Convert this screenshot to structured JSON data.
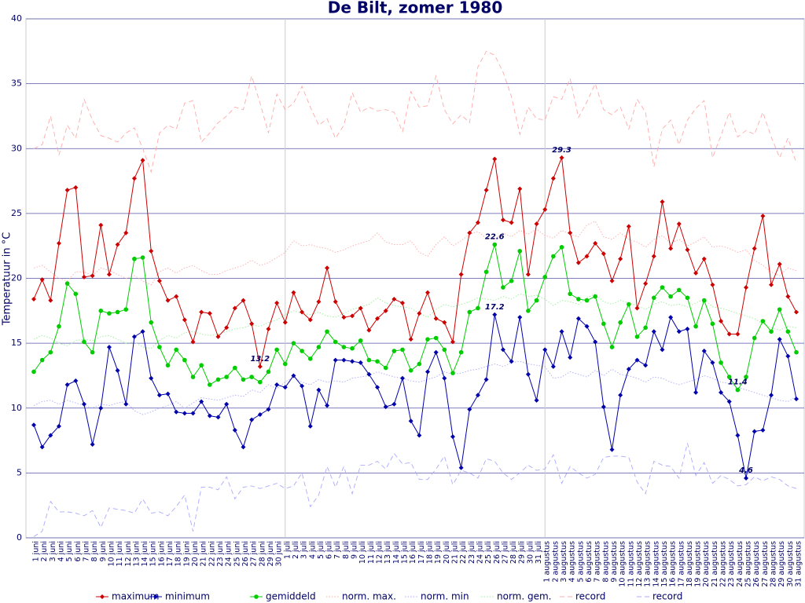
{
  "chart_data": {
    "type": "line",
    "title": "De Bilt, zomer 1980",
    "y_label": "Temperatuur in °C",
    "categories": [
      "1 juni",
      "2 juni",
      "3 juni",
      "4 juni",
      "5 juni",
      "6 juni",
      "7 juni",
      "8 juni",
      "9 juni",
      "10 juni",
      "11 juni",
      "12 juni",
      "13 juni",
      "14 juni",
      "15 juni",
      "16 juni",
      "17 juni",
      "18 juni",
      "19 juni",
      "20 juni",
      "21 juni",
      "22 juni",
      "23 juni",
      "24 juni",
      "25 juni",
      "26 juni",
      "27 juni",
      "28 juni",
      "29 juni",
      "30 juni",
      "1 juli",
      "2 juli",
      "3 juli",
      "4 juli",
      "5 juli",
      "6 juli",
      "7 juli",
      "8 juli",
      "9 juli",
      "10 juli",
      "11 juli",
      "12 juli",
      "13 juli",
      "14 juli",
      "15 juli",
      "16 juli",
      "17 juli",
      "18 juli",
      "19 juli",
      "20 juli",
      "21 juli",
      "22 juli",
      "23 juli",
      "24 juli",
      "25 juli",
      "26 juli",
      "27 juli",
      "28 juli",
      "29 juli",
      "30 juli",
      "31 juli",
      "1 augustus",
      "2 augustus",
      "3 augustus",
      "4 augustus",
      "5 augustus",
      "6 augustus",
      "7 augustus",
      "8 augustus",
      "9 augustus",
      "10 augustus",
      "11 augustus",
      "12 augustus",
      "13 augustus",
      "14 augustus",
      "15 augustus",
      "16 augustus",
      "17 augustus",
      "18 augustus",
      "19 augustus",
      "20 augustus",
      "21 augustus",
      "22 augustus",
      "23 augustus",
      "24 augustus",
      "25 augustus",
      "26 augustus",
      "27 augustus",
      "28 augustus",
      "29 augustus",
      "30 augustus",
      "31 augustus"
    ],
    "ylim": [
      0,
      40
    ],
    "yticks": [
      0,
      5,
      10,
      15,
      20,
      25,
      30,
      35,
      40
    ],
    "grid": true,
    "legend": "bottom",
    "series": [
      {
        "name": "maximum",
        "color": "#cc0000",
        "style": "solid",
        "marker": "diamond",
        "values": [
          18.4,
          19.9,
          18.3,
          22.7,
          26.8,
          27.0,
          20.1,
          20.2,
          24.1,
          20.3,
          22.6,
          23.5,
          27.7,
          29.1,
          22.1,
          19.8,
          18.3,
          18.6,
          16.8,
          15.1,
          17.4,
          17.3,
          15.5,
          16.2,
          17.7,
          18.3,
          16.5,
          13.2,
          16.1,
          18.1,
          16.6,
          18.9,
          17.4,
          16.8,
          18.2,
          20.8,
          18.2,
          17.0,
          17.1,
          17.7,
          16.0,
          16.9,
          17.5,
          18.4,
          18.1,
          15.3,
          17.3,
          18.9,
          16.9,
          16.6,
          15.1,
          20.3,
          23.5,
          24.3,
          26.8,
          29.2,
          24.5,
          24.3,
          26.9,
          20.3,
          24.2,
          25.3,
          27.7,
          29.3,
          23.5,
          21.2,
          21.7,
          22.7,
          21.9,
          19.8,
          21.5,
          24.0,
          17.7,
          19.6,
          21.7,
          25.9,
          22.3,
          24.2,
          22.2,
          20.4,
          21.5,
          19.5,
          16.7,
          15.7,
          15.7,
          19.3,
          22.3,
          24.8,
          19.5,
          21.1,
          18.6,
          17.4
        ]
      },
      {
        "name": "minimum",
        "color": "#0000aa",
        "style": "solid",
        "marker": "diamond",
        "values": [
          8.7,
          7.0,
          7.9,
          8.6,
          11.8,
          12.1,
          10.3,
          7.2,
          10.0,
          14.7,
          12.9,
          10.3,
          15.5,
          15.9,
          12.3,
          11.0,
          11.1,
          9.7,
          9.6,
          9.6,
          10.5,
          9.4,
          9.3,
          10.3,
          8.3,
          7.0,
          9.1,
          9.5,
          9.9,
          11.8,
          11.6,
          12.5,
          11.7,
          8.6,
          11.4,
          10.2,
          13.7,
          13.7,
          13.6,
          13.5,
          12.6,
          11.6,
          10.1,
          10.3,
          12.3,
          9.0,
          7.9,
          12.8,
          14.3,
          12.3,
          7.8,
          5.4,
          9.9,
          11.0,
          12.2,
          17.2,
          14.5,
          13.6,
          17.0,
          12.6,
          10.6,
          14.5,
          13.2,
          15.9,
          13.9,
          16.9,
          16.3,
          15.1,
          10.1,
          6.8,
          11.0,
          13.0,
          13.7,
          13.3,
          15.9,
          14.5,
          17.0,
          15.9,
          16.1,
          11.2,
          14.4,
          13.5,
          11.2,
          10.5,
          7.9,
          4.6,
          8.2,
          8.3,
          11.0,
          15.3,
          14.0,
          10.7
        ]
      },
      {
        "name": "gemiddeld",
        "color": "#00cc00",
        "style": "solid",
        "marker": "circle",
        "values": [
          12.8,
          13.7,
          14.3,
          16.3,
          19.6,
          18.8,
          15.1,
          14.3,
          17.5,
          17.3,
          17.4,
          17.6,
          21.5,
          21.6,
          16.6,
          14.7,
          13.3,
          14.5,
          13.7,
          12.4,
          13.3,
          11.8,
          12.2,
          12.4,
          13.1,
          12.2,
          12.4,
          12.0,
          12.8,
          14.5,
          13.4,
          15.0,
          14.4,
          13.8,
          14.7,
          15.9,
          15.1,
          14.7,
          14.6,
          15.2,
          13.7,
          13.6,
          13.1,
          14.4,
          14.5,
          12.9,
          13.4,
          15.3,
          15.4,
          14.5,
          12.7,
          14.3,
          17.4,
          17.7,
          20.5,
          22.6,
          19.3,
          19.8,
          22.1,
          17.5,
          18.3,
          20.1,
          21.7,
          22.4,
          18.8,
          18.4,
          18.3,
          18.6,
          16.5,
          14.7,
          16.6,
          18.0,
          15.5,
          16.2,
          18.5,
          19.3,
          18.6,
          19.1,
          18.5,
          16.3,
          18.3,
          16.5,
          13.5,
          12.4,
          11.4,
          12.4,
          15.4,
          16.7,
          15.9,
          17.6,
          15.9,
          14.3
        ]
      },
      {
        "name": "norm. max.",
        "color": "#ffaaaa",
        "style": "dotted",
        "values": [
          20.8,
          21.0,
          20.5,
          20.0,
          19.8,
          20.5,
          20.5,
          20.2,
          20.8,
          20.6,
          20.3,
          20.0,
          20.2,
          19.8,
          19.5,
          20.5,
          20.8,
          20.4,
          20.8,
          21.0,
          20.6,
          20.3,
          20.3,
          20.6,
          20.8,
          21.0,
          21.4,
          21.0,
          21.2,
          21.6,
          22.0,
          22.9,
          22.5,
          22.6,
          22.4,
          22.3,
          22.0,
          22.2,
          22.5,
          22.7,
          22.9,
          23.5,
          22.8,
          22.6,
          22.6,
          22.9,
          22.0,
          21.7,
          22.6,
          23.2,
          22.5,
          22.9,
          23.4,
          23.6,
          23.1,
          23.0,
          23.5,
          23.2,
          23.7,
          23.4,
          23.8,
          23.3,
          23.1,
          23.7,
          23.4,
          23.2,
          24.1,
          24.4,
          23.2,
          23.0,
          23.5,
          23.0,
          22.8,
          22.4,
          23.0,
          23.3,
          22.7,
          23.0,
          22.5,
          22.8,
          23.2,
          22.4,
          22.5,
          22.3,
          22.0,
          22.2,
          21.4,
          21.0,
          20.5,
          20.2,
          20.8,
          20.6
        ]
      },
      {
        "name": "norm. min",
        "color": "#aaaaff",
        "style": "dotted",
        "values": [
          10.2,
          10.5,
          10.6,
          10.3,
          10.6,
          10.4,
          10.2,
          10.0,
          10.3,
          10.2,
          10.4,
          10.5,
          9.8,
          9.5,
          9.7,
          10.0,
          10.2,
          10.5,
          10.0,
          10.4,
          10.8,
          10.7,
          10.6,
          10.8,
          11.0,
          10.9,
          11.4,
          11.2,
          11.8,
          11.5,
          12.0,
          12.4,
          12.0,
          11.8,
          12.2,
          12.0,
          12.1,
          12.0,
          12.3,
          12.4,
          12.5,
          12.8,
          12.6,
          12.4,
          12.3,
          12.1,
          12.0,
          12.2,
          12.4,
          12.8,
          12.6,
          12.7,
          12.9,
          13.0,
          13.2,
          13.4,
          13.2,
          13.5,
          13.6,
          13.4,
          13.3,
          13.2,
          12.3,
          12.4,
          12.8,
          12.6,
          12.4,
          12.9,
          12.5,
          13.0,
          12.6,
          12.5,
          12.3,
          12.0,
          12.4,
          12.3,
          12.0,
          11.8,
          12.0,
          12.2,
          12.5,
          12.3,
          12.0,
          11.9,
          11.6,
          11.4,
          11.2,
          11.0,
          10.8,
          10.6,
          10.5,
          10.9
        ]
      },
      {
        "name": "norm. gem.",
        "color": "#99ee99",
        "style": "dotted",
        "values": [
          15.3,
          15.6,
          15.4,
          15.0,
          14.8,
          15.2,
          15.3,
          15.2,
          15.5,
          15.6,
          15.3,
          15.0,
          15.1,
          14.7,
          14.6,
          15.2,
          15.6,
          15.4,
          15.8,
          15.9,
          15.7,
          15.6,
          15.7,
          15.9,
          16.1,
          16.2,
          16.4,
          16.3,
          16.6,
          16.8,
          17.2,
          17.5,
          17.3,
          17.2,
          17.4,
          17.1,
          17.0,
          17.3,
          17.6,
          17.8,
          18.0,
          18.5,
          18.1,
          17.9,
          17.8,
          17.7,
          17.3,
          17.0,
          17.6,
          18.0,
          17.8,
          18.0,
          18.2,
          18.5,
          18.4,
          18.3,
          18.6,
          18.4,
          18.8,
          18.6,
          18.7,
          18.4,
          17.9,
          18.3,
          18.2,
          18.0,
          18.5,
          18.8,
          18.2,
          18.0,
          18.3,
          18.1,
          17.9,
          17.6,
          18.0,
          18.2,
          17.9,
          18.0,
          17.8,
          18.1,
          18.4,
          17.8,
          17.7,
          17.5,
          17.3,
          17.1,
          16.9,
          16.5,
          16.2,
          16.0,
          16.3,
          16.2
        ]
      },
      {
        "name": "record",
        "color": "#ffaaaa",
        "style": "dashed",
        "values": [
          30.0,
          30.3,
          32.5,
          29.5,
          31.8,
          30.8,
          33.8,
          32.2,
          31.0,
          30.8,
          30.5,
          31.2,
          31.6,
          30.0,
          28.2,
          31.2,
          31.8,
          31.5,
          33.5,
          33.7,
          30.5,
          31.2,
          32.0,
          32.5,
          33.2,
          33.0,
          35.6,
          33.5,
          31.2,
          34.2,
          33.0,
          33.5,
          34.8,
          33.2,
          31.8,
          32.3,
          30.8,
          31.8,
          34.3,
          32.8,
          33.2,
          32.9,
          33.0,
          32.8,
          31.3,
          34.4,
          33.2,
          33.3,
          35.6,
          33.0,
          31.9,
          32.6,
          32.0,
          36.3,
          37.5,
          37.2,
          35.9,
          34.0,
          31.1,
          33.2,
          32.3,
          32.2,
          34.0,
          33.8,
          35.4,
          32.4,
          33.6,
          35.0,
          33.0,
          32.6,
          33.2,
          31.5,
          33.8,
          32.8,
          28.6,
          31.5,
          32.2,
          30.3,
          32.2,
          33.1,
          33.7,
          29.3,
          31.0,
          32.8,
          30.9,
          31.4,
          31.1,
          32.8,
          30.9,
          29.3,
          30.8,
          28.9
        ]
      },
      {
        "name": "record",
        "color": "#aaaaff",
        "style": "dashed",
        "values": [
          0.1,
          0.5,
          2.8,
          2.0,
          2.0,
          1.9,
          1.7,
          2.1,
          0.8,
          2.3,
          2.2,
          2.1,
          1.9,
          3.0,
          1.9,
          2.0,
          1.7,
          2.4,
          3.3,
          0.5,
          3.9,
          3.9,
          3.7,
          4.7,
          3.0,
          3.9,
          4.0,
          3.8,
          4.0,
          4.2,
          3.8,
          4.0,
          5.0,
          2.4,
          3.3,
          5.5,
          3.9,
          5.5,
          3.4,
          5.6,
          5.6,
          5.9,
          5.3,
          6.5,
          5.7,
          5.8,
          4.5,
          4.5,
          5.3,
          6.3,
          4.1,
          5.2,
          5.0,
          4.6,
          6.1,
          5.9,
          5.0,
          4.5,
          5.0,
          5.6,
          5.2,
          5.3,
          6.4,
          4.2,
          5.5,
          5.0,
          4.6,
          4.9,
          6.2,
          6.3,
          6.3,
          6.2,
          4.3,
          3.4,
          5.9,
          5.6,
          5.5,
          4.6,
          7.3,
          4.8,
          5.8,
          4.2,
          4.8,
          4.5,
          4.0,
          4.1,
          4.7,
          4.4,
          4.7,
          4.5,
          4.0,
          3.8
        ]
      }
    ],
    "annotations": [
      {
        "label": "13.2",
        "x": "28 juni",
        "y": 13.2
      },
      {
        "label": "22.6",
        "x": "26 juli",
        "y": 22.6
      },
      {
        "label": "17.2",
        "x": "26 juli",
        "y": 17.2
      },
      {
        "label": "29.3",
        "x": "3 augustus",
        "y": 29.3
      },
      {
        "label": "11.4",
        "x": "24 augustus",
        "y": 11.4
      },
      {
        "label": "4.6",
        "x": "25 augustus",
        "y": 4.6
      }
    ]
  }
}
